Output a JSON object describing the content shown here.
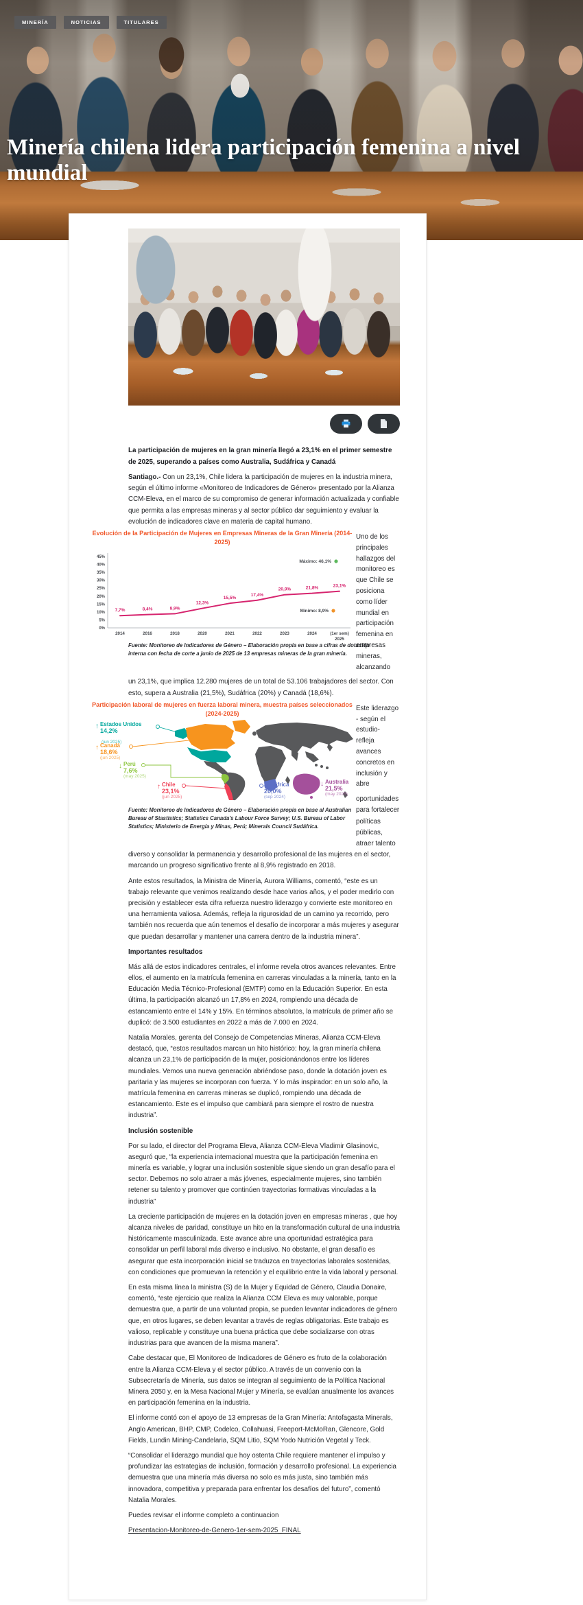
{
  "nav": {
    "items": [
      {
        "label": "MINERÍA"
      },
      {
        "label": "NOTICIAS"
      },
      {
        "label": "TITULARES"
      }
    ]
  },
  "hero": {
    "title": "Minería chilena lidera participación femenina a nivel mundial"
  },
  "toolbar": {
    "buttons": [
      {
        "icon": "printer-icon"
      },
      {
        "icon": "document-icon"
      }
    ]
  },
  "article": {
    "lead": "La participación de mujeres en la gran minería llegó a 23,1% en el primer semestre de 2025, superando a países como Australia, Sudáfrica y Canadá",
    "p1_bold": "Santiago.-",
    "p1_rest": " Con un 23,1%, Chile lidera la participación de mujeres en la industria minera, según el último informe «Monitoreo de Indicadores de Género» presentado por la Alianza CCM-Eleva, en el marco de su compromiso de generar información actualizada y confiable que permita a las empresas mineras y al sector público dar seguimiento y evaluar la evolución de indicadores clave en materia de capital humano.",
    "wrap1": "Uno de los principales hallazgos del monitoreo es que Chile se posiciona como líder mundial en participación femenina en empresas mineras, alcanzando",
    "p2": "un 23,1%, que implica 12.280 mujeres de un total de 53.106 trabajadores del sector. Con esto, supera a Australia (21,5%), Sudáfrica (20%) y Canadá (18,6%).",
    "wrap2": "Este liderazgo - según el estudio- refleja avances concretos en inclusión y abre",
    "p3": "oportunidades para fortalecer políticas públicas, atraer talento diverso y consolidar la permanencia y desarrollo profesional de las mujeres en el sector, marcando un progreso significativo frente al 8,9% registrado en 2018.",
    "p4": "Ante estos resultados, la Ministra de Minería, Aurora Williams, comentó, “este es un trabajo relevante que venimos realizando desde hace varios años, y el poder medirlo con precisión y establecer esta cifra refuerza nuestro liderazgo y convierte este monitoreo en una herramienta valiosa. Además, refleja la rigurosidad de un camino ya recorrido, pero también nos recuerda que aún tenemos el desafío de incorporar a más mujeres y asegurar que puedan desarrollar y mantener una carrera dentro de la industria minera”.",
    "h2_1": "Importantes resultados",
    "p5": "Más allá de estos indicadores centrales, el informe revela otros avances relevantes. Entre ellos, el aumento en la matrícula femenina en carreras vinculadas a la minería, tanto en la Educación Media Técnico-Profesional (EMTP) como en la Educación Superior. En esta última, la participación alcanzó un 17,8% en 2024, rompiendo una década de estancamiento entre el 14% y 15%. En términos absolutos, la matrícula de primer año se duplicó: de 3.500 estudiantes en 2022 a más de 7.000 en 2024.",
    "p6": "Natalia Morales, gerenta del Consejo de Competencias Mineras, Alianza CCM-Eleva destacó, que, “estos resultados marcan un hito histórico: hoy, la gran minería chilena alcanza un 23,1% de participación de la mujer, posicionándonos entre los líderes mundiales. Vemos una nueva generación abriéndose paso, donde la dotación joven es paritaria y las mujeres se incorporan con fuerza. Y lo más inspirador: en un solo año, la matrícula femenina en carreras mineras se duplicó, rompiendo una década de estancamiento. Este es el impulso que cambiará para siempre el rostro de nuestra industria”.",
    "h2_2": "Inclusión sostenible",
    "p7": "Por su lado, el director del Programa Eleva, Alianza CCM-Eleva Vladimir Glasinovic, aseguró que, “la experiencia internacional muestra que la participación femenina en minería es variable, y lograr una inclusión sostenible sigue siendo un gran desafío para el sector. Debemos no solo atraer a más jóvenes, especialmente mujeres, sino también retener su talento y promover que continúen trayectorias formativas vinculadas a la industria”",
    "p8": "La creciente participación de mujeres en la dotación joven en empresas mineras , que hoy alcanza niveles de paridad, constituye un hito en la transformación cultural de una industria históricamente masculinizada. Este avance abre una oportunidad estratégica para consolidar un perfil laboral más diverso e inclusivo. No obstante, el gran desafío es asegurar que esta incorporación inicial se traduzca en trayectorias laborales sostenidas, con condiciones que promuevan la retención y el equilibrio entre la vida laboral y personal.",
    "p9": "En esta misma línea la ministra (S) de la Mujer y Equidad de Género, Claudia Donaire, comentó, “este ejercicio que realiza la Alianza CCM Eleva es muy valorable, porque demuestra que, a partir de una voluntad propia, se pueden levantar indicadores de género que, en otros lugares, se deben levantar a través de reglas obligatorias. Este trabajo es valioso, replicable y constituye una buena práctica que debe socializarse con otras industrias para que avancen de la misma manera”.",
    "p10": "Cabe destacar que, El Monitoreo de Indicadores de Género es fruto de la colaboración entre la Alianza CCM-Eleva y el sector público. A través de un convenio con la Subsecretaría de Minería, sus datos se integran al seguimiento de la Política Nacional Minera 2050 y, en la Mesa Nacional Mujer y Minería, se evalúan anualmente los avances en participación femenina en la industria.",
    "p11": "El informe contó con el apoyo de 13 empresas de la Gran Minería: Antofagasta Minerals, Anglo American, BHP, CMP, Codelco, Collahuasi, Freeport-McMoRan, Glencore, Gold Fields, Lundin Mining-Candelaria, SQM Litio, SQM Yodo Nutrición Vegetal y Teck.",
    "p12": "“Consolidar el liderazgo mundial que hoy ostenta Chile requiere mantener el impulso y profundizar las estrategias de inclusión, formación y desarrollo profesional. La experiencia demuestra que una minería más diversa no solo es más justa, sino también más innovadora, competitiva y preparada para enfrentar los desafíos del futuro”, comentó Natalia Morales.",
    "p13": "Puedes revisar el informe completo a continuacion",
    "link": "Presentacion-Monitoreo-de-Genero-1er-sem-2025_FINAL"
  },
  "chart_data": [
    {
      "type": "line",
      "title": "Evolución de la Participación de Mujeres en Empresas Mineras de la Gran Minería (2014-2025)",
      "categories": [
        "2014",
        "2016",
        "2018",
        "2020",
        "2021",
        "2022",
        "2023",
        "2024",
        "(1er sem)|2025"
      ],
      "values": [
        7.7,
        8.4,
        8.9,
        12.3,
        15.5,
        17.4,
        20.9,
        21.8,
        23.1
      ],
      "labels": [
        "7,7%",
        "8,4%",
        "8,9%",
        "12,3%",
        "15,5%",
        "17,4%",
        "20,9%",
        "21,8%",
        "23,1%"
      ],
      "xlabel": "",
      "ylabel": "",
      "ylim": [
        0,
        45
      ],
      "ytick_step": 5,
      "grid": false,
      "line_color": "#d6246e",
      "annotations": [
        {
          "text": "Máximo: 46,1%",
          "dot_color": "#5cb85c"
        },
        {
          "text": "Mínimo: 8,9%",
          "dot_color": "#f0932b"
        }
      ],
      "source": "Fuente: Monitoreo de Indicadores de Género – Elaboración propia en base a cifras de dotación interna con fecha de corte a junio de 2025 de 13 empresas mineras de la gran minería."
    },
    {
      "type": "map",
      "title": "Participación laboral de mujeres en fuerza laboral minera, muestra países seleccionados (2024-2025)",
      "countries": [
        {
          "name": "Estados Unidos",
          "value": "14,2%",
          "date": "(jun 2025)",
          "trend": "↑",
          "color": "#00a79d"
        },
        {
          "name": "Canadá",
          "value": "18,6%",
          "date": "(jun 2025)",
          "trend": "↑",
          "color": "#f7941e"
        },
        {
          "name": "Perú",
          "value": "7,6%",
          "date": "(may 2025)",
          "trend": "↓",
          "color": "#8dc63f"
        },
        {
          "name": "Chile",
          "value": "23,1%",
          "date": "(jun 2025)",
          "trend": "↑",
          "color": "#ef4056"
        },
        {
          "name": "Sudáfrica",
          "value": "20,0%",
          "date": "(sep 2024)",
          "trend": "",
          "color": "#5c6fc5"
        },
        {
          "name": "Australia",
          "value": "21,5%",
          "date": "(may 2025)",
          "trend": "↓",
          "color": "#a4509b"
        }
      ],
      "source": "Fuente: Monitoreo de Indicadores de Género – Elaboración propia en base al Australian Bureau of Stastistics; Statistics Canada's Labour Force Survey; U.S. Bureau of Labor Statistics; Ministerio de Energía y Minas, Perú; Minerals Council Sudáfrica."
    }
  ]
}
